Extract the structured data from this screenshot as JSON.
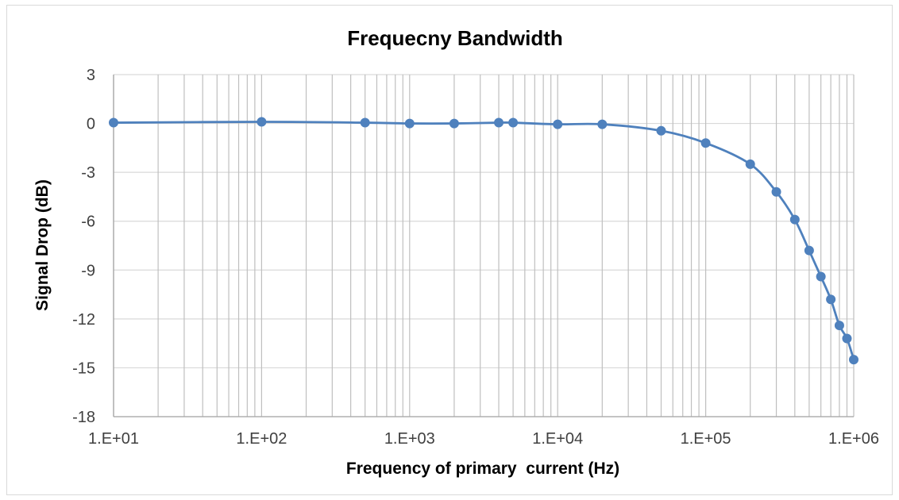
{
  "chart_data": {
    "type": "scatter",
    "title": "Frequecny Bandwidth",
    "xlabel": "Frequency of primary  current (Hz)",
    "ylabel": "Signal Drop (dB)",
    "x_scale": "log",
    "xlim": [
      10,
      1000000
    ],
    "ylim": [
      -18,
      3
    ],
    "x_ticks": [
      "1.E+01",
      "1.E+02",
      "1.E+03",
      "1.E+04",
      "1.E+05",
      "1.E+06"
    ],
    "y_ticks": [
      "3",
      "0",
      "-3",
      "-6",
      "-9",
      "-12",
      "-15",
      "-18"
    ],
    "grid": true,
    "legend": "none",
    "line_style": "smooth line with markers",
    "series": [
      {
        "color": "#4f81bd",
        "x": [
          10,
          100,
          500,
          1000,
          2000,
          4000,
          5000,
          10000,
          20000,
          50000,
          100000,
          200000,
          300000,
          400000,
          500000,
          600000,
          700000,
          800000,
          900000,
          1000000
        ],
        "y": [
          0.05,
          0.1,
          0.05,
          0.0,
          0.0,
          0.05,
          0.05,
          -0.05,
          -0.05,
          -0.45,
          -1.2,
          -2.5,
          -4.2,
          -5.9,
          -7.8,
          -9.4,
          -10.8,
          -12.4,
          -13.2,
          -14.5
        ]
      }
    ]
  }
}
